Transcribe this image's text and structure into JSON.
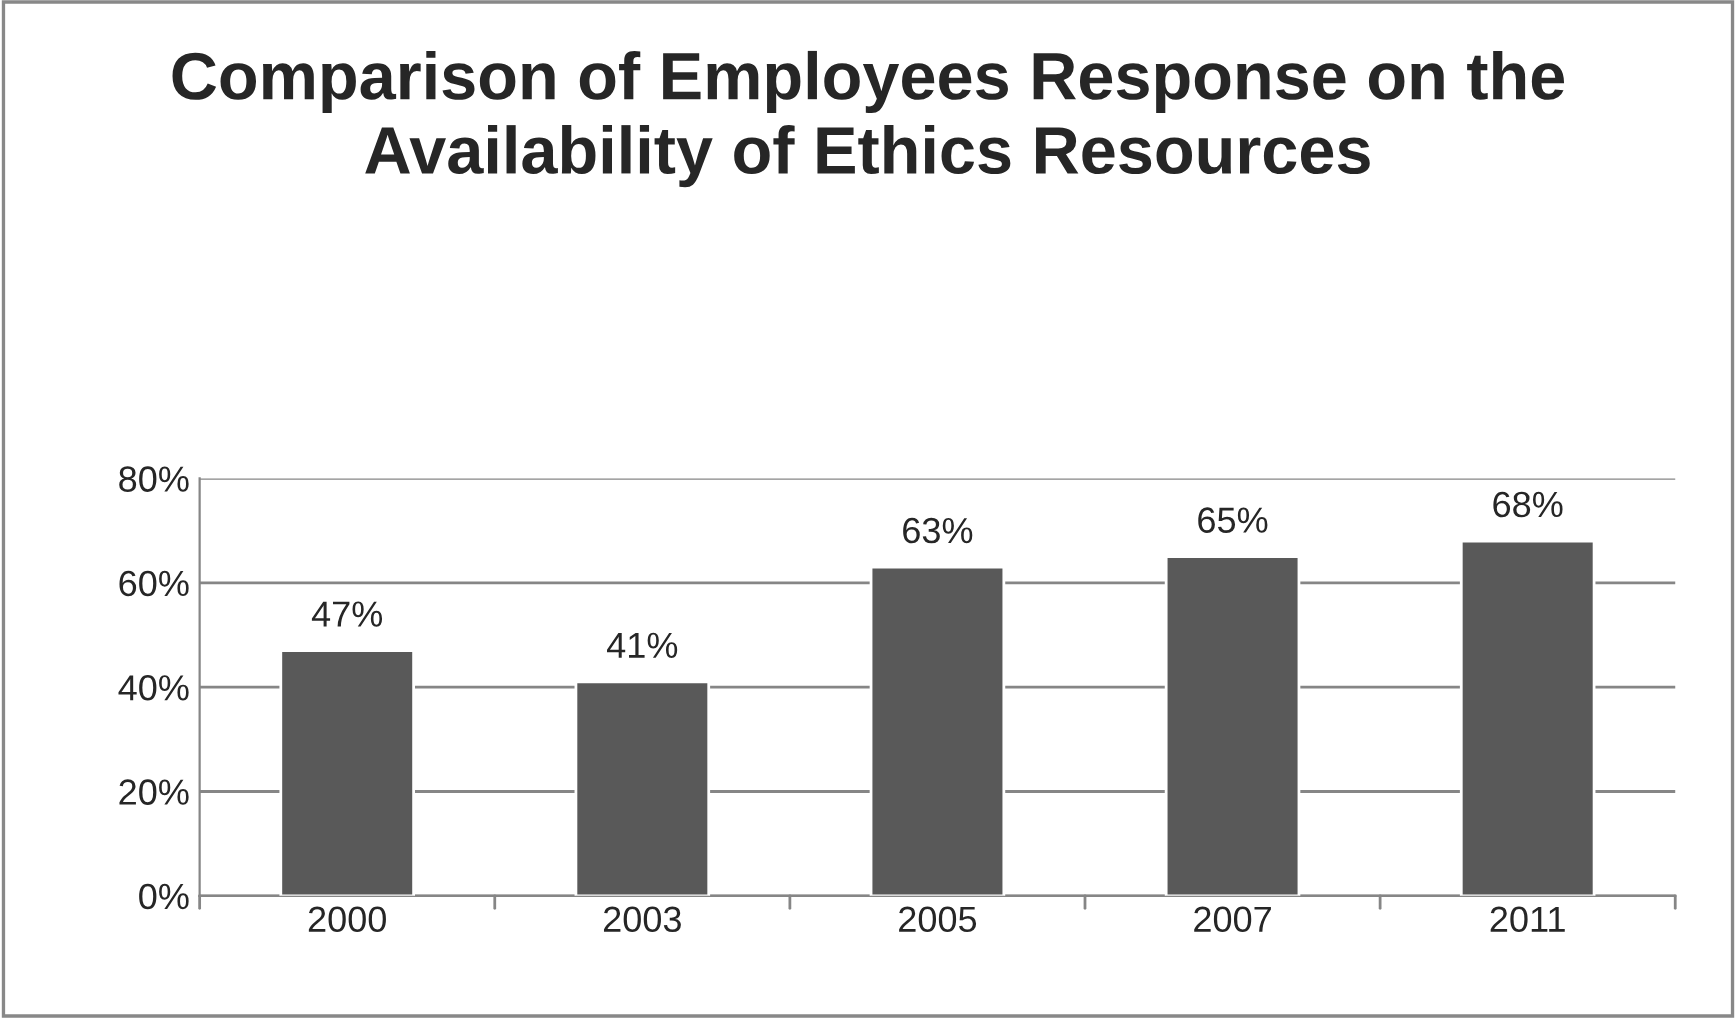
{
  "chart_data": {
    "type": "bar",
    "title": "Comparison of Employees Response on the Availability of Ethics Resources",
    "categories": [
      "2000",
      "2003",
      "2005",
      "2007",
      "2011"
    ],
    "values": [
      47,
      41,
      63,
      65,
      68
    ],
    "value_labels": [
      "47%",
      "41%",
      "63%",
      "65%",
      "68%"
    ],
    "color": "#595959",
    "ylim": [
      0,
      80
    ],
    "yticks": [
      {
        "value": 0,
        "label": "0%"
      },
      {
        "value": 20,
        "label": "20%"
      },
      {
        "value": 40,
        "label": "40%"
      },
      {
        "value": 60,
        "label": "60%"
      },
      {
        "value": 80,
        "label": "80%"
      }
    ],
    "grid": "y"
  }
}
